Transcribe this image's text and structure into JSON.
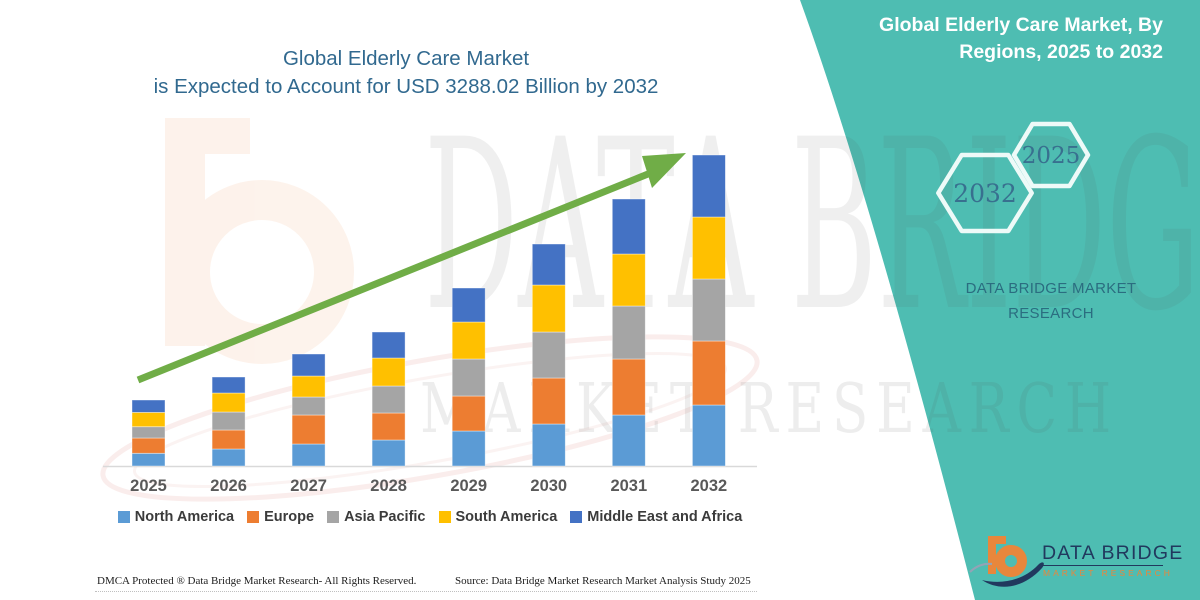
{
  "header": {
    "line1": "Global Elderly Care Market, By",
    "line2": "Regions, 2025 to 2032"
  },
  "title": {
    "line1": "Global Elderly Care Market",
    "line2": "is Expected to Account for USD 3288.02 Billion by 2032"
  },
  "hex_years": {
    "large": "2032",
    "small": "2025"
  },
  "brand_caption": {
    "line1": "DATA BRIDGE MARKET",
    "line2": "RESEARCH"
  },
  "watermark": {
    "line1": "DATA BRIDGE",
    "line2": "MARKET RESEARCH"
  },
  "logo": {
    "title": "DATA BRIDGE",
    "subtitle": "MARKET RESEARCH"
  },
  "footer": {
    "dmca": "DMCA Protected ® Data Bridge Market Research-  All Rights Reserved.",
    "source": "Source: Data Bridge Market Research  Market Analysis Study 2025"
  },
  "colors": {
    "teal_panel": "#4ebdb2",
    "arrow_green": "#70ad47",
    "title_blue": "#31698f"
  },
  "chart_data": {
    "type": "bar",
    "stacked": true,
    "title": "Global Elderly Care Market is Expected to Account for USD 3288.02 Billion by 2032",
    "unit": "USD Billion",
    "categories": [
      "2025",
      "2026",
      "2027",
      "2028",
      "2029",
      "2030",
      "2031",
      "2032"
    ],
    "series": [
      {
        "name": "North America",
        "color": "#5B9BD5",
        "values": [
          134.3,
          179.7,
          232.6,
          274.9,
          370.0,
          444.0,
          539.2,
          644.9
        ]
      },
      {
        "name": "Europe",
        "color": "#ED7D31",
        "values": [
          161.8,
          200.9,
          306.6,
          285.4,
          370.0,
          486.3,
          592.0,
          676.6
        ]
      },
      {
        "name": "Asia Pacific",
        "color": "#A5A5A5",
        "values": [
          119.5,
          190.3,
          190.3,
          285.4,
          391.2,
          486.3,
          560.3,
          655.5
        ]
      },
      {
        "name": "South America",
        "color": "#FFC000",
        "values": [
          151.2,
          200.9,
          222.0,
          296.0,
          391.2,
          496.9,
          549.7,
          655.5
        ]
      },
      {
        "name": "Middle East and Africa",
        "color": "#4472C4",
        "values": [
          131.1,
          169.2,
          232.6,
          274.9,
          359.4,
          433.5,
          581.5,
          655.5
        ]
      }
    ],
    "ylim": [
      0,
      3400
    ],
    "grid": false,
    "legend_position": "bottom",
    "trend_arrow": true
  }
}
